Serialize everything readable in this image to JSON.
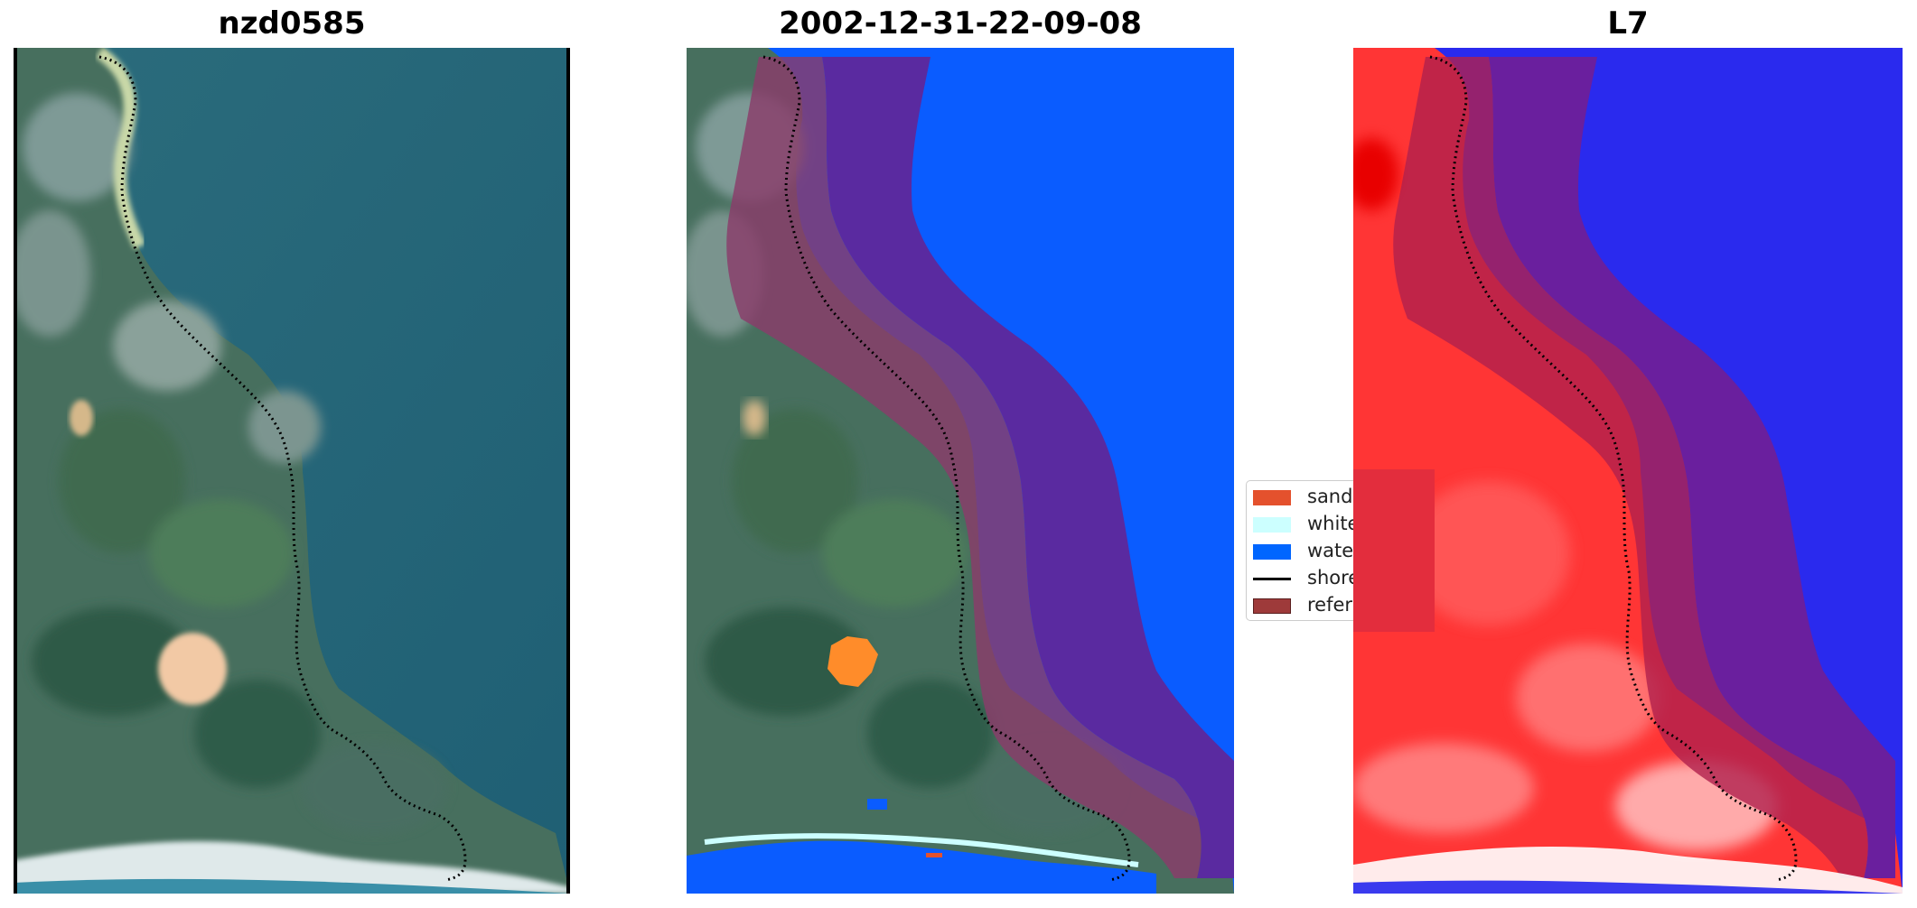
{
  "panels": [
    {
      "title": "nzd0585"
    },
    {
      "title": "2002-12-31-22-09-08"
    },
    {
      "title": "L7"
    }
  ],
  "legend": {
    "items": [
      {
        "label": "sand",
        "color": "#e4512d"
      },
      {
        "label": "white",
        "color": "#ccffff"
      },
      {
        "label": "water",
        "color": "#0066ff"
      },
      {
        "label": "shore",
        "color": "#000000"
      },
      {
        "label": "refer",
        "color": "#9e3a3a"
      }
    ]
  },
  "colors": {
    "land": "#3f6b58",
    "ocean": "#2f6e80",
    "water_class": "#0a5cff",
    "shoreline_buffer": "#5a2aa0",
    "reference_overlay": "#8a3c6a",
    "red_index": "#ff2a2a",
    "blue_index": "#2020ee"
  }
}
